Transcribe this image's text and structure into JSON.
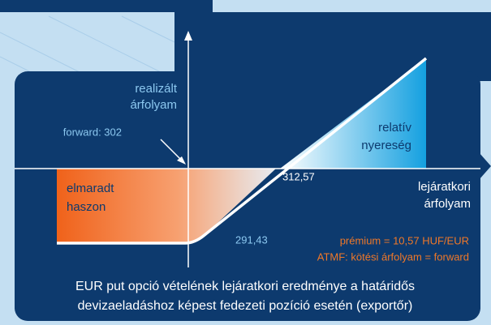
{
  "y_axis_label": [
    "realizált",
    "árfolyam"
  ],
  "x_axis_label": [
    "lejáratkori",
    "árfolyam"
  ],
  "forward_label": "forward: 302",
  "gain_label": [
    "relatív",
    "nyereség"
  ],
  "loss_label": [
    "elmaradt",
    "haszon"
  ],
  "breakeven_label": "312,57",
  "floor_label": "291,43",
  "notes": [
    "prémium = 10,57 HUF/EUR",
    "ATMF: kötési árfolyam = forward"
  ],
  "caption": [
    "EUR put opció vételének lejáratkori eredménye a határidős",
    "devizaeladáshoz képest fedezeti pozíció esetén (exportőr)"
  ]
}
